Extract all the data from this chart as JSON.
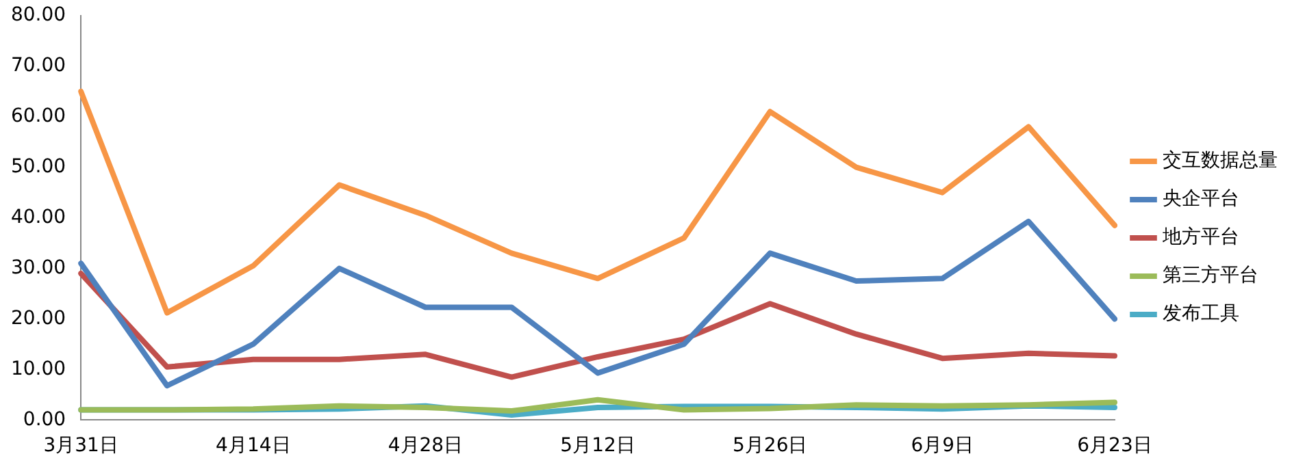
{
  "chart_data": {
    "type": "line",
    "categories": [
      "3月31日",
      null,
      "4月14日",
      null,
      "4月28日",
      null,
      "5月12日",
      null,
      "5月26日",
      null,
      "6月9日",
      null,
      "6月23日"
    ],
    "ylim": [
      0,
      80
    ],
    "yticks": [
      {
        "value": 0,
        "label": "0.00"
      },
      {
        "value": 10,
        "label": "10.00"
      },
      {
        "value": 20,
        "label": "20.00"
      },
      {
        "value": 30,
        "label": "30.00"
      },
      {
        "value": 40,
        "label": "40.00"
      },
      {
        "value": 50,
        "label": "50.00"
      },
      {
        "value": 60,
        "label": "60.00"
      },
      {
        "value": 70,
        "label": "70.00"
      },
      {
        "value": 80,
        "label": "80.00"
      }
    ],
    "grid": false,
    "legend": "right",
    "marker": "none",
    "line_style": "solid",
    "series": [
      {
        "name": "交互数据总量",
        "color": "#f79646",
        "values": [
          65,
          21.2,
          30.5,
          46.5,
          40.5,
          33,
          28,
          36,
          61,
          50,
          45,
          58,
          38.5
        ]
      },
      {
        "name": "央企平台",
        "color": "#4f81bd",
        "values": [
          31,
          6.8,
          15,
          30,
          22.3,
          22.3,
          9.3,
          15,
          33,
          27.5,
          28,
          39.3,
          20
        ]
      },
      {
        "name": "地方平台",
        "color": "#c0504d",
        "values": [
          29,
          10.5,
          12,
          12,
          13,
          8.5,
          12.5,
          16,
          23,
          17,
          12.2,
          13.2,
          12.7
        ]
      },
      {
        "name": "第三方平台",
        "color": "#9bbb59",
        "values": [
          2,
          2,
          2.2,
          2.8,
          2.5,
          1.8,
          4,
          2,
          2.3,
          3,
          2.8,
          3,
          3.5
        ]
      },
      {
        "name": "发布工具",
        "color": "#4bacc6",
        "values": [
          2,
          2,
          2,
          2.2,
          2.8,
          1,
          2.5,
          2.7,
          2.7,
          2.5,
          2.2,
          2.8,
          2.5
        ]
      }
    ]
  }
}
